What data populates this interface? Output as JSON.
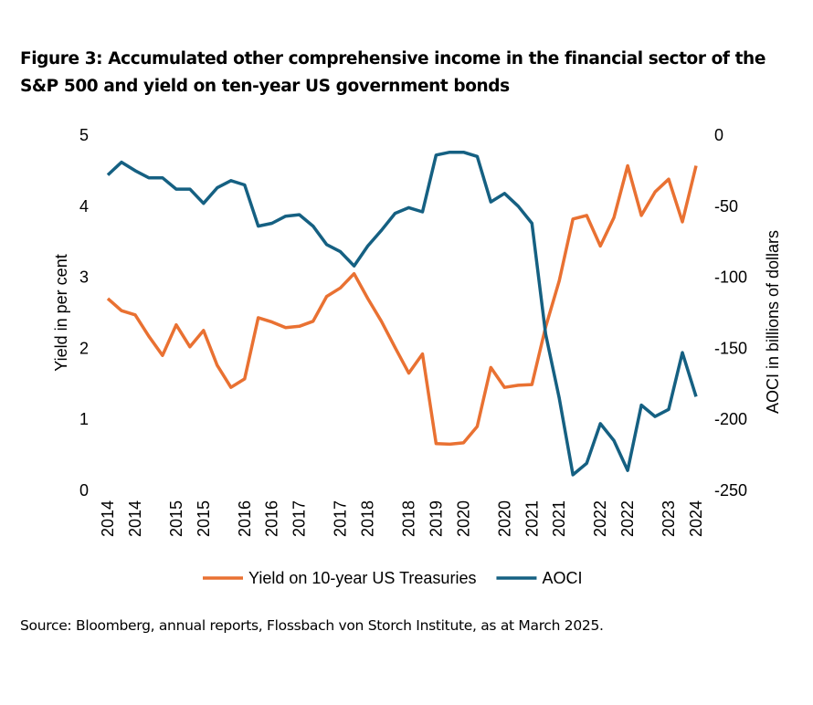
{
  "chart_data": {
    "type": "line",
    "title": "Figure 3: Accumulated other comprehensive income in the financial sector of the S&P 500 and yield on ten-year US government bonds",
    "source": "Source: Bloomberg, annual reports, Flossbach von Storch Institute, as at March 2025.",
    "y_label": "Yield in per cent",
    "y2_label": "AOCI in billions of dollars",
    "categories": [
      "2014",
      null,
      "2014",
      null,
      null,
      "2015",
      null,
      "2015",
      null,
      null,
      "2016",
      null,
      "2016",
      null,
      "2017",
      null,
      null,
      "2017",
      null,
      "2018",
      null,
      null,
      "2018",
      null,
      "2019",
      null,
      "2020",
      null,
      null,
      "2020",
      null,
      "2021",
      null,
      "2021",
      null,
      null,
      "2022",
      null,
      "2022",
      null,
      null,
      "2023",
      null,
      "2024"
    ],
    "series": [
      {
        "name": "Yield on 10-year US Treasuries",
        "color": "#e97132",
        "values": [
          2.7,
          2.53,
          2.47,
          2.17,
          1.9,
          2.33,
          2.02,
          2.25,
          1.76,
          1.45,
          1.57,
          2.43,
          2.37,
          2.29,
          2.31,
          2.38,
          2.73,
          2.85,
          3.05,
          2.7,
          2.38,
          2.01,
          1.65,
          1.92,
          0.66,
          0.65,
          0.67,
          0.9,
          1.73,
          1.45,
          1.48,
          1.49,
          2.3,
          2.95,
          3.82,
          3.87,
          3.44,
          3.84,
          4.57,
          3.87,
          4.2,
          4.38,
          3.78,
          4.57
        ]
      },
      {
        "name": "AOCI",
        "color": "#156082",
        "axis": "y2",
        "values": [
          -28,
          -19,
          -25,
          -30,
          -30,
          -38,
          -38,
          -48,
          -37,
          -32,
          -35,
          -64,
          -62,
          -57,
          -56,
          -64,
          -77,
          -82,
          -92,
          -78,
          -67,
          -55,
          -51,
          -54,
          -14,
          -12,
          -12,
          -15,
          -47,
          -41,
          -50,
          -62,
          -140,
          -185,
          -239,
          -231,
          -203,
          -215,
          -236,
          -190,
          -198,
          -193,
          -153,
          -184
        ]
      }
    ],
    "ylim": [
      0,
      5
    ],
    "yticks": [
      0,
      1,
      2,
      3,
      4,
      5
    ],
    "y2lim": [
      -250,
      0
    ],
    "y2ticks": [
      -250,
      -200,
      -150,
      -100,
      -50,
      0
    ],
    "grid": false,
    "legend": "bottom"
  }
}
